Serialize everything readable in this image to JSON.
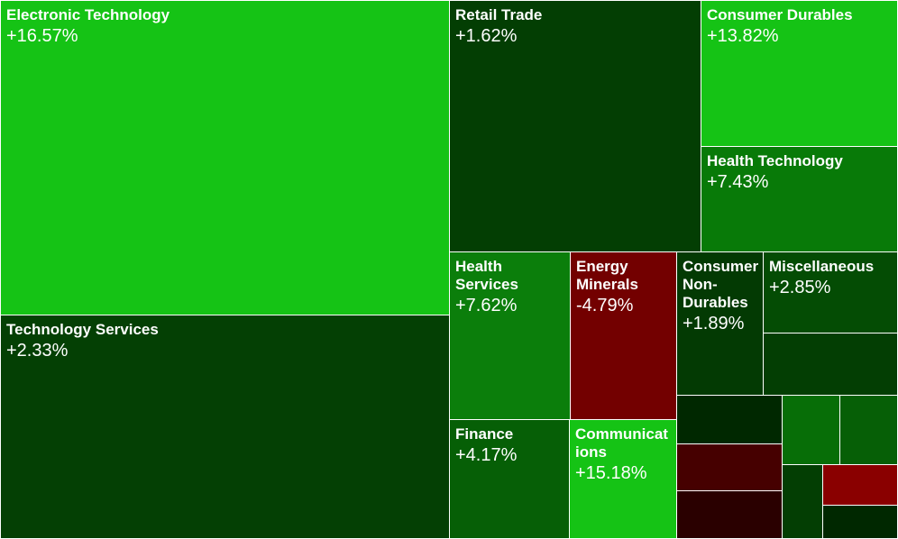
{
  "chart_data": {
    "type": "treemap",
    "tiles": [
      {
        "label": "Electronic Technology",
        "value": "+16.57%",
        "change": 16.57,
        "color": "#15c315"
      },
      {
        "label": "Technology Services",
        "value": "+2.33%",
        "change": 2.33,
        "color": "#044004"
      },
      {
        "label": "Retail Trade",
        "value": "+1.62%",
        "change": 1.62,
        "color": "#033e03"
      },
      {
        "label": "Consumer Durables",
        "value": "+13.82%",
        "change": 13.82,
        "color": "#15c315"
      },
      {
        "label": "Health Technology",
        "value": "+7.43%",
        "change": 7.43,
        "color": "#087a08"
      },
      {
        "label": "Health\nServices",
        "value": "+7.62%",
        "change": 7.62,
        "color": "#0b7e0b"
      },
      {
        "label": "Energy\nMinerals",
        "value": "-4.79%",
        "change": -4.79,
        "color": "#730000"
      },
      {
        "label": "Consumer\nNon-\nDurables",
        "value": "+1.89%",
        "change": 1.89,
        "color": "#033a03"
      },
      {
        "label": "Miscellaneous",
        "value": "+2.85%",
        "change": 2.85,
        "color": "#044c04"
      },
      {
        "label": "Finance",
        "value": "+4.17%",
        "change": 4.17,
        "color": "#065f06"
      },
      {
        "label": "Communicat\nions",
        "value": "+15.18%",
        "change": 15.18,
        "color": "#15c315"
      },
      {
        "label": "",
        "value": "",
        "color": "#033e03"
      },
      {
        "label": "",
        "value": "",
        "color": "#002800"
      },
      {
        "label": "",
        "value": "",
        "color": "#460000"
      },
      {
        "label": "",
        "value": "",
        "color": "#2a0000"
      },
      {
        "label": "",
        "value": "",
        "color": "#076e07"
      },
      {
        "label": "",
        "value": "",
        "color": "#065f06"
      },
      {
        "label": "",
        "value": "",
        "color": "#033e03"
      },
      {
        "label": "",
        "value": "",
        "color": "#8a0000"
      },
      {
        "label": "",
        "value": "",
        "color": "#002800"
      }
    ]
  }
}
